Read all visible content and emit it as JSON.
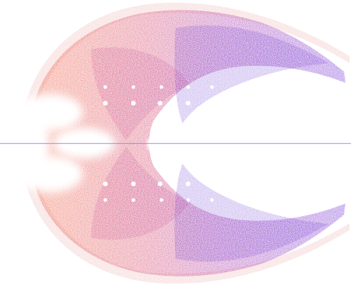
{
  "image": {
    "background_color": "#ffffff",
    "palette": {
      "warm_edge": "#f24a1a",
      "mid": "#cf2452",
      "magenta": "#9c18a0",
      "violet": "#5a14d2",
      "highlight": "#ffffff"
    },
    "elements": {
      "cloud": "particle-cloud",
      "voids": "bright-voids",
      "spots": "spot-pattern",
      "axis": "horizontal-axis-line"
    }
  }
}
